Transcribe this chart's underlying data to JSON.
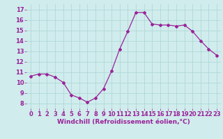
{
  "x": [
    0,
    1,
    2,
    3,
    4,
    5,
    6,
    7,
    8,
    9,
    10,
    11,
    12,
    13,
    14,
    15,
    16,
    17,
    18,
    19,
    20,
    21,
    22,
    23
  ],
  "y": [
    10.6,
    10.8,
    10.8,
    10.5,
    10.0,
    8.8,
    8.5,
    8.1,
    8.5,
    9.4,
    11.1,
    13.2,
    14.9,
    16.7,
    16.7,
    15.6,
    15.5,
    15.5,
    15.4,
    15.5,
    14.9,
    14.0,
    13.2,
    12.6
  ],
  "line_color": "#992299",
  "marker": "D",
  "marker_size": 2.0,
  "bg_color": "#d0ecec",
  "grid_color": "#aad4d4",
  "xlabel": "Windchill (Refroidissement éolien,°C)",
  "xlabel_color": "#992299",
  "xlabel_fontsize": 6.5,
  "tick_color": "#992299",
  "tick_fontsize": 6.0,
  "ylim": [
    7.5,
    17.5
  ],
  "xlim": [
    -0.5,
    23.5
  ],
  "yticks": [
    8,
    9,
    10,
    11,
    12,
    13,
    14,
    15,
    16,
    17
  ],
  "xticks": [
    0,
    1,
    2,
    3,
    4,
    5,
    6,
    7,
    8,
    9,
    10,
    11,
    12,
    13,
    14,
    15,
    16,
    17,
    18,
    19,
    20,
    21,
    22,
    23
  ]
}
